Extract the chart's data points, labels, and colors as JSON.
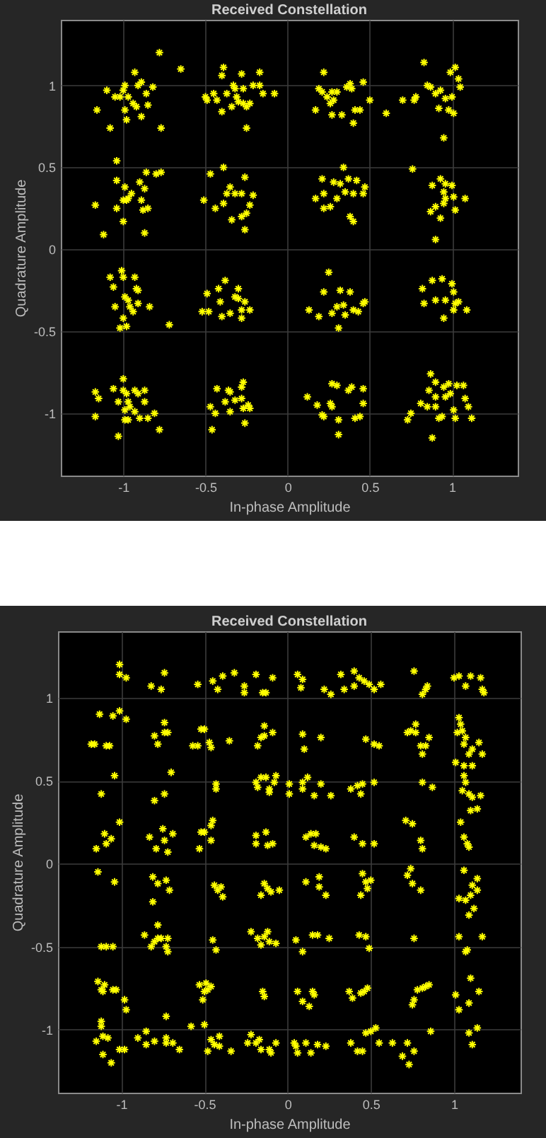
{
  "chart_data": [
    {
      "type": "scatter",
      "title": "Received Constellation",
      "xlabel": "In-phase Amplitude",
      "ylabel": "Quadrature Amplitude",
      "color": "#ffff00",
      "marker": "cross",
      "grid": true,
      "xlim": [
        -1.38,
        1.4
      ],
      "ylim": [
        -1.38,
        1.4
      ],
      "xticks": [
        -1,
        -0.5,
        0,
        0.5,
        1
      ],
      "yticks": [
        -1,
        -0.5,
        0,
        0.5,
        1
      ],
      "x": [
        -1.16,
        -1.1,
        -1.08,
        -1.05,
        -1.02,
        -1.0,
        -0.99,
        -0.99,
        -0.98,
        -0.93,
        -0.94,
        -0.92,
        -0.91,
        -0.89,
        -0.89,
        -0.86,
        -0.85,
        -0.82,
        -0.78,
        -0.77,
        -0.65,
        -0.97,
        -0.5,
        -0.49,
        -0.45,
        -0.43,
        -0.4,
        -0.4,
        -0.39,
        -0.37,
        -0.34,
        -0.33,
        -0.32,
        -0.31,
        -0.28,
        -0.27,
        -0.27,
        -0.25,
        -0.25,
        -0.23,
        -0.21,
        -0.17,
        -0.17,
        -0.15,
        -0.08,
        -0.3,
        0.17,
        0.19,
        0.22,
        0.21,
        0.24,
        0.26,
        0.27,
        0.28,
        0.3,
        0.33,
        0.36,
        0.38,
        0.39,
        0.4,
        0.41,
        0.44,
        0.46,
        0.5,
        0.6,
        0.27,
        0.7,
        0.77,
        0.78,
        0.83,
        0.85,
        0.87,
        0.9,
        0.92,
        0.93,
        0.95,
        0.96,
        0.99,
        1.0,
        1.01,
        1.02,
        1.04,
        1.05,
        0.98,
        -1.17,
        -1.12,
        -1.04,
        -1.04,
        -1.04,
        -1.0,
        -0.99,
        -0.98,
        -0.97,
        -1.0,
        -0.95,
        -0.9,
        -0.89,
        -0.88,
        -0.87,
        -0.86,
        -0.87,
        -0.85,
        -0.8,
        -0.77,
        -0.51,
        -0.47,
        -0.44,
        -0.39,
        -0.39,
        -0.37,
        -0.35,
        -0.34,
        -0.32,
        -0.28,
        -0.26,
        -0.25,
        -0.26,
        -0.23,
        -0.21,
        -0.28,
        0.17,
        0.21,
        0.22,
        0.22,
        0.26,
        0.28,
        0.3,
        0.34,
        0.35,
        0.37,
        0.38,
        0.4,
        0.4,
        0.42,
        0.46,
        0.47,
        0.32,
        0.76,
        0.87,
        0.88,
        0.9,
        0.9,
        0.93,
        0.93,
        0.95,
        0.95,
        0.96,
        1.0,
        1.01,
        1.02,
        1.08,
        0.96,
        -1.08,
        -1.06,
        -1.01,
        -1.0,
        -0.93,
        -0.92,
        -0.99,
        -0.97,
        -1.05,
        -0.96,
        -0.94,
        -0.91,
        -0.84,
        -1.0,
        -1.02,
        -0.98,
        -0.72,
        -0.91,
        -0.49,
        -0.52,
        -0.48,
        -0.42,
        -0.41,
        -0.4,
        -0.38,
        -0.35,
        -0.32,
        -0.3,
        -0.3,
        -0.28,
        -0.28,
        -0.23,
        -0.26,
        0.13,
        0.19,
        0.22,
        0.25,
        0.27,
        0.3,
        0.32,
        0.31,
        0.34,
        0.35,
        0.38,
        0.4,
        0.43,
        0.46,
        0.47,
        0.82,
        0.83,
        0.88,
        0.9,
        0.94,
        0.95,
        0.96,
        1.0,
        1.01,
        1.01,
        1.02,
        1.04,
        1.09,
        -1.17,
        -1.15,
        -1.17,
        -1.06,
        -1.03,
        -1.0,
        -1.0,
        -0.98,
        -0.97,
        -0.96,
        -0.99,
        -0.99,
        -0.97,
        -0.93,
        -0.93,
        -0.91,
        -0.87,
        -0.9,
        -0.87,
        -0.85,
        -0.81,
        -0.78,
        -1.03,
        -0.47,
        -0.46,
        -0.44,
        -0.43,
        -0.38,
        -0.36,
        -0.35,
        -0.35,
        -0.32,
        -0.28,
        -0.28,
        -0.27,
        -0.27,
        -0.26,
        -0.24,
        -0.23,
        0.12,
        0.18,
        0.21,
        0.22,
        0.26,
        0.27,
        0.27,
        0.3,
        0.31,
        0.31,
        0.37,
        0.39,
        0.41,
        0.44,
        0.46,
        0.46,
        0.73,
        0.75,
        0.81,
        0.85,
        0.86,
        0.87,
        0.9,
        0.9,
        0.88,
        0.9,
        0.92,
        0.95,
        0.96,
        0.94,
        0.98,
        0.99,
        1.01,
        1.03,
        1.07,
        1.08,
        1.1,
        1.12,
        1.02
      ],
      "values": [
        0.85,
        0.97,
        0.74,
        0.93,
        0.93,
        0.97,
        1.0,
        0.85,
        0.79,
        1.08,
        0.89,
        0.87,
        1.0,
        1.02,
        0.81,
        0.95,
        0.88,
        0.99,
        1.2,
        0.74,
        1.1,
        0.93,
        0.93,
        0.91,
        0.95,
        0.91,
        0.84,
        1.06,
        1.11,
        0.95,
        0.87,
        1.0,
        0.98,
        0.93,
        1.07,
        0.98,
        0.89,
        0.87,
        0.74,
        0.89,
        1.0,
        1.08,
        1.0,
        0.95,
        0.95,
        0.9,
        0.85,
        0.98,
        1.08,
        0.96,
        0.93,
        0.89,
        0.82,
        0.91,
        0.96,
        0.82,
        0.99,
        1.01,
        0.98,
        0.77,
        0.85,
        0.85,
        1.02,
        0.91,
        0.83,
        0.96,
        0.91,
        0.91,
        0.93,
        1.14,
        1.0,
        0.99,
        0.95,
        0.86,
        0.97,
        0.68,
        0.92,
        1.08,
        0.93,
        0.83,
        1.11,
        1.04,
        0.99,
        0.85,
        0.27,
        0.09,
        0.54,
        0.42,
        0.25,
        0.17,
        0.38,
        0.3,
        0.31,
        0.3,
        0.34,
        0.41,
        0.3,
        0.24,
        0.37,
        0.47,
        0.1,
        0.25,
        0.46,
        0.47,
        0.3,
        0.46,
        0.25,
        0.5,
        0.28,
        0.34,
        0.38,
        0.18,
        0.34,
        0.34,
        0.44,
        0.22,
        0.12,
        0.27,
        0.33,
        0.2,
        0.31,
        0.43,
        0.34,
        0.25,
        0.26,
        0.41,
        0.31,
        0.5,
        0.35,
        0.43,
        0.2,
        0.17,
        0.34,
        0.42,
        0.34,
        0.38,
        0.4,
        0.49,
        0.23,
        0.39,
        0.26,
        0.06,
        0.19,
        0.43,
        0.28,
        0.35,
        0.31,
        0.39,
        0.32,
        0.24,
        0.31,
        0.4,
        -0.17,
        -0.23,
        -0.13,
        -0.17,
        -0.17,
        -0.24,
        -0.29,
        -0.31,
        -0.35,
        -0.35,
        -0.38,
        -0.33,
        -0.35,
        -0.42,
        -0.48,
        -0.47,
        -0.46,
        -0.25,
        -0.27,
        -0.38,
        -0.38,
        -0.24,
        -0.32,
        -0.41,
        -0.19,
        -0.39,
        -0.29,
        -0.24,
        -0.3,
        -0.37,
        -0.42,
        -0.37,
        -0.32,
        -0.37,
        -0.41,
        -0.26,
        -0.14,
        -0.39,
        -0.35,
        -0.25,
        -0.48,
        -0.34,
        -0.4,
        -0.26,
        -0.37,
        -0.38,
        -0.33,
        -0.32,
        -0.24,
        -0.33,
        -0.19,
        -0.31,
        -0.18,
        -0.42,
        -0.31,
        -0.21,
        -0.26,
        -0.37,
        -0.33,
        -0.32,
        -0.37,
        -0.87,
        -0.91,
        -1.02,
        -0.85,
        -1.14,
        -0.79,
        -0.86,
        -0.88,
        -0.93,
        -0.96,
        -0.98,
        -1.04,
        -1.04,
        -0.86,
        -0.99,
        -0.88,
        -0.93,
        -1.03,
        -0.86,
        -1.03,
        -1.0,
        -1.1,
        -0.93,
        -0.96,
        -1.1,
        -1.0,
        -0.85,
        -0.93,
        -0.86,
        -0.87,
        -0.99,
        -0.92,
        -0.84,
        -0.91,
        -0.81,
        -0.97,
        -1.06,
        -0.95,
        -0.97,
        -0.9,
        -0.95,
        -1.01,
        -1.02,
        -0.94,
        -0.96,
        -0.82,
        -0.83,
        -1.04,
        -1.13,
        -0.86,
        -0.84,
        -1.03,
        -1.02,
        -0.94,
        -0.85,
        -1.04,
        -1.0,
        -0.94,
        -0.96,
        -0.86,
        -0.76,
        -0.9,
        -0.81,
        -1.15,
        -0.96,
        -1.03,
        -0.84,
        -0.9,
        -1.02,
        -0.82,
        -0.88,
        -0.98,
        -0.83,
        -0.83,
        -0.91,
        -0.96,
        -1.03,
        -1.03
      ]
    },
    {
      "type": "scatter",
      "title": "Received Constellation",
      "xlabel": "In-phase Amplitude",
      "ylabel": "Quadrature Amplitude",
      "color": "#ffff00",
      "marker": "cross",
      "grid": true,
      "xlim": [
        -1.38,
        1.4
      ],
      "ylim": [
        -1.38,
        1.4
      ],
      "xticks": [
        -1,
        -0.5,
        0,
        0.5,
        1
      ],
      "yticks": [
        -1,
        -0.5,
        0,
        0.5,
        1
      ],
      "x": [
        -1.01,
        -1.01,
        -0.97,
        -0.82,
        -0.76,
        -0.74,
        -0.54,
        -0.45,
        -0.42,
        -0.39,
        -0.32,
        -0.26,
        -0.26,
        -0.19,
        -0.15,
        -0.13,
        -0.09,
        0.06,
        0.09,
        0.08,
        0.22,
        0.26,
        0.32,
        0.34,
        0.4,
        0.4,
        0.43,
        0.46,
        0.49,
        0.52,
        0.56,
        0.76,
        0.81,
        0.83,
        0.84,
        1.0,
        1.03,
        1.07,
        1.1,
        1.16,
        1.17,
        1.18,
        -1.18,
        -1.16,
        -1.13,
        -1.09,
        -1.07,
        -1.05,
        -1.01,
        -0.97,
        -0.8,
        -0.78,
        -0.74,
        -0.74,
        -0.72,
        -0.57,
        -0.54,
        -0.52,
        -0.5,
        -0.47,
        -0.46,
        -0.35,
        -0.18,
        -0.16,
        -0.14,
        -0.14,
        -0.09,
        0.09,
        0.1,
        0.2,
        0.47,
        0.52,
        0.55,
        0.72,
        0.74,
        0.77,
        0.77,
        0.8,
        0.81,
        0.83,
        0.85,
        1.03,
        1.04,
        1.02,
        1.05,
        1.07,
        1.06,
        1.09,
        1.11,
        1.15,
        1.17,
        -1.12,
        -1.04,
        -0.8,
        -0.74,
        -0.7,
        -0.43,
        -0.43,
        -0.19,
        -0.18,
        -0.16,
        -0.13,
        -0.11,
        -0.11,
        -0.08,
        -0.07,
        0.01,
        0.01,
        0.09,
        0.12,
        0.09,
        0.16,
        0.2,
        0.26,
        0.38,
        0.42,
        0.44,
        0.45,
        0.52,
        0.81,
        0.87,
        1.01,
        1.06,
        1.11,
        1.06,
        1.07,
        1.05,
        1.09,
        1.11,
        1.1,
        1.14,
        1.16,
        -1.15,
        -1.1,
        -1.09,
        -1.06,
        -1.01,
        -0.83,
        -0.79,
        -0.75,
        -0.74,
        -0.72,
        -0.69,
        -0.53,
        -0.52,
        -0.5,
        -0.46,
        -0.46,
        -0.45,
        -0.19,
        -0.19,
        -0.13,
        -0.12,
        -0.09,
        0.11,
        0.14,
        0.17,
        0.16,
        0.2,
        0.23,
        0.4,
        0.45,
        0.52,
        0.71,
        0.75,
        0.8,
        0.81,
        1.04,
        1.06,
        1.08,
        1.09,
        -1.14,
        -1.04,
        -0.81,
        -0.81,
        -0.78,
        -0.73,
        -0.71,
        -0.44,
        -0.42,
        -0.4,
        -0.39,
        -0.16,
        -0.14,
        -0.12,
        -0.1,
        -0.05,
        0.11,
        0.19,
        0.19,
        0.23,
        0.44,
        0.45,
        0.47,
        0.48,
        0.5,
        0.72,
        0.74,
        0.75,
        0.8,
        1.06,
        1.03,
        1.07,
        1.1,
        1.11,
        1.14,
        1.14,
        1.12,
        1.09,
        -1.12,
        -1.09,
        -1.05,
        -0.86,
        -0.82,
        -0.8,
        -0.78,
        -0.78,
        -0.76,
        -0.73,
        -0.72,
        -0.72,
        -0.45,
        -0.43,
        -0.22,
        -0.18,
        -0.16,
        -0.14,
        -0.12,
        -0.11,
        -0.07,
        0.05,
        0.09,
        0.15,
        0.18,
        0.25,
        0.43,
        0.47,
        0.49,
        0.76,
        1.03,
        1.07,
        1.08,
        1.17,
        -1.14,
        -1.12,
        -1.11,
        -1.1,
        -1.05,
        -1.03,
        -0.98,
        -0.97,
        -0.73,
        -0.53,
        -0.51,
        -0.5,
        -0.49,
        -0.48,
        -0.46,
        -0.15,
        -0.14,
        0.06,
        0.09,
        0.13,
        0.15,
        0.16,
        0.37,
        0.39,
        0.44,
        0.46,
        0.48,
        0.75,
        0.76,
        0.78,
        0.81,
        0.83,
        0.85,
        1.01,
        1.03,
        1.09,
        1.1,
        1.15,
        -1.15,
        -1.12,
        -1.12,
        -1.11,
        -1.11,
        -1.08,
        -1.06,
        -1.01,
        -0.98,
        -0.9,
        -0.85,
        -0.85,
        -0.8,
        -0.73,
        -0.73,
        -0.69,
        -0.65,
        -0.58,
        -0.5,
        -0.48,
        -0.46,
        -0.44,
        -0.41,
        -0.41,
        -0.34,
        -0.24,
        -0.22,
        -0.19,
        -0.17,
        -0.16,
        -0.11,
        -0.1,
        -0.07,
        0.04,
        0.05,
        0.06,
        0.11,
        0.14,
        0.18,
        0.23,
        0.38,
        0.42,
        0.45,
        0.47,
        0.5,
        0.53,
        0.55,
        0.63,
        0.69,
        0.72,
        0.73,
        0.76,
        0.86,
        1.09,
        1.11,
        1.14
      ],
      "values": [
        1.2,
        1.14,
        1.12,
        1.07,
        1.05,
        1.15,
        1.08,
        1.1,
        1.05,
        1.13,
        1.15,
        1.07,
        1.03,
        1.14,
        1.03,
        1.03,
        1.12,
        1.14,
        1.11,
        1.06,
        1.05,
        1.02,
        1.14,
        1.05,
        1.07,
        1.16,
        1.12,
        1.1,
        1.08,
        1.05,
        1.08,
        1.16,
        1.02,
        1.05,
        1.07,
        1.12,
        1.13,
        1.07,
        1.13,
        1.12,
        1.05,
        1.03,
        0.72,
        0.72,
        0.9,
        0.71,
        0.71,
        0.89,
        0.92,
        0.87,
        0.77,
        0.72,
        0.85,
        0.79,
        0.79,
        0.71,
        0.71,
        0.81,
        0.81,
        0.73,
        0.7,
        0.74,
        0.71,
        0.76,
        0.77,
        0.83,
        0.79,
        0.78,
        0.69,
        0.76,
        0.75,
        0.72,
        0.71,
        0.79,
        0.8,
        0.84,
        0.79,
        0.71,
        0.66,
        0.71,
        0.76,
        0.88,
        0.84,
        0.79,
        0.8,
        0.76,
        0.72,
        0.66,
        0.69,
        0.73,
        0.66,
        0.42,
        0.53,
        0.38,
        0.42,
        0.55,
        0.45,
        0.48,
        0.49,
        0.46,
        0.52,
        0.52,
        0.45,
        0.43,
        0.49,
        0.53,
        0.48,
        0.42,
        0.49,
        0.52,
        0.45,
        0.41,
        0.48,
        0.41,
        0.45,
        0.47,
        0.42,
        0.48,
        0.49,
        0.49,
        0.46,
        0.61,
        0.59,
        0.59,
        0.53,
        0.49,
        0.44,
        0.42,
        0.4,
        0.32,
        0.33,
        0.41,
        0.09,
        0.18,
        0.12,
        0.15,
        0.25,
        0.16,
        0.09,
        0.21,
        0.14,
        0.07,
        0.18,
        0.09,
        0.19,
        0.19,
        0.14,
        0.23,
        0.26,
        0.17,
        0.12,
        0.19,
        0.11,
        0.12,
        0.16,
        0.18,
        0.18,
        0.11,
        0.1,
        0.09,
        0.16,
        0.12,
        0.12,
        0.26,
        0.24,
        0.14,
        0.09,
        0.25,
        0.16,
        0.12,
        0.1,
        -0.05,
        -0.11,
        -0.08,
        -0.23,
        -0.12,
        -0.1,
        -0.16,
        -0.13,
        -0.16,
        -0.14,
        -0.2,
        -0.19,
        -0.12,
        -0.15,
        -0.17,
        -0.16,
        -0.11,
        -0.14,
        -0.08,
        -0.19,
        -0.19,
        -0.06,
        -0.11,
        -0.15,
        -0.1,
        -0.07,
        -0.03,
        -0.12,
        -0.16,
        -0.04,
        -0.21,
        -0.22,
        -0.19,
        -0.13,
        -0.09,
        -0.16,
        -0.27,
        -0.31,
        -0.5,
        -0.5,
        -0.5,
        -0.43,
        -0.5,
        -0.47,
        -0.45,
        -0.37,
        -0.45,
        -0.5,
        -0.53,
        -0.45,
        -0.46,
        -0.52,
        -0.41,
        -0.45,
        -0.49,
        -0.44,
        -0.41,
        -0.47,
        -0.48,
        -0.46,
        -0.53,
        -0.43,
        -0.43,
        -0.45,
        -0.43,
        -0.44,
        -0.51,
        -0.45,
        -0.44,
        -0.53,
        -0.52,
        -0.44,
        -0.71,
        -0.76,
        -0.77,
        -0.73,
        -0.76,
        -0.76,
        -0.82,
        -0.88,
        -0.92,
        -0.73,
        -0.82,
        -0.77,
        -0.72,
        -0.76,
        -0.74,
        -0.77,
        -0.8,
        -0.77,
        -0.83,
        -0.86,
        -0.77,
        -0.79,
        -0.77,
        -0.81,
        -0.78,
        -0.77,
        -0.75,
        -0.85,
        -0.82,
        -0.76,
        -0.75,
        -0.74,
        -0.73,
        -0.79,
        -0.88,
        -0.84,
        -0.69,
        -0.77,
        -1.07,
        -0.95,
        -0.98,
        -1.04,
        -1.15,
        -1.05,
        -1.2,
        -1.12,
        -1.12,
        -1.05,
        -1.01,
        -1.09,
        -1.07,
        -1.05,
        -1.08,
        -1.08,
        -1.12,
        -0.98,
        -0.97,
        -1.13,
        -1.06,
        -1.09,
        -1.04,
        -1.1,
        -1.13,
        -1.08,
        -1.03,
        -1.08,
        -1.06,
        -1.12,
        -1.12,
        -1.14,
        -1.08,
        -1.08,
        -1.1,
        -1.14,
        -1.08,
        -1.14,
        -1.09,
        -1.1,
        -1.08,
        -1.13,
        -1.13,
        -1.02,
        -1.01,
        -0.99,
        -1.08,
        -1.08,
        -1.16,
        -1.08,
        -1.21,
        -1.13,
        -1.01,
        -1.02,
        -1.09,
        -0.99
      ]
    }
  ]
}
